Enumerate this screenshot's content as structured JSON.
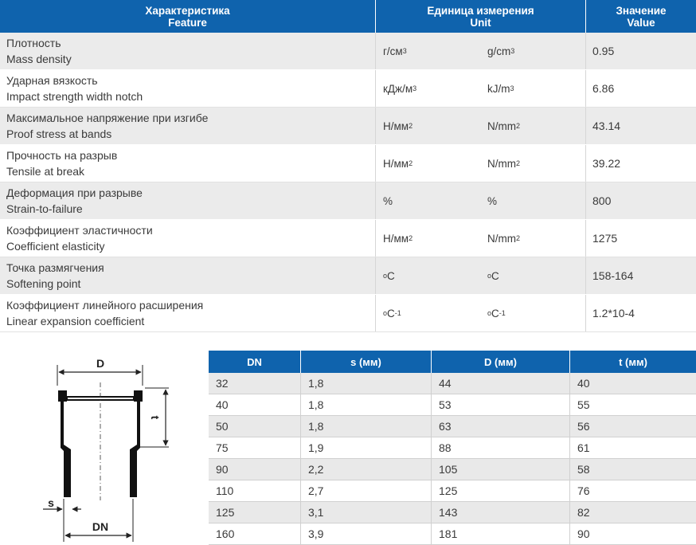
{
  "properties": {
    "headers": {
      "feature_ru": "Характеристика",
      "feature_en": "Feature",
      "unit_ru": "Единица измерения",
      "unit_en": "Unit",
      "value_ru": "Значение",
      "value_en": "Value"
    },
    "rows": [
      {
        "ru": "Плотность",
        "en": "Mass density",
        "unit_ru": "г/см",
        "unit_en": "g/cm",
        "sup": "3",
        "value": "0.95"
      },
      {
        "ru": "Ударная вязкость",
        "en": "Impact strength width notch",
        "unit_ru": "кДж/м",
        "unit_en": "kJ/m",
        "sup": "3",
        "value": "6.86"
      },
      {
        "ru": "Максимальное напряжение при изгибе",
        "en": "Proof stress at bands",
        "unit_ru": "Н/мм",
        "unit_en": "N/mm",
        "sup": "2",
        "value": "43.14"
      },
      {
        "ru": "Прочность на разрыв",
        "en": "Tensile at break",
        "unit_ru": "Н/мм",
        "unit_en": "N/mm",
        "sup": "2",
        "value": "39.22"
      },
      {
        "ru": "Деформация при разрыве",
        "en": "Strain-to-failure",
        "unit_ru": "%",
        "unit_en": "%",
        "sup": "",
        "value": "800"
      },
      {
        "ru": "Коэффициент эластичности",
        "en": "Coefficient elasticity",
        "unit_ru": "Н/мм",
        "unit_en": "N/mm",
        "sup": "2",
        "value": "1275"
      },
      {
        "ru": "Точка размягчения",
        "en": "Softening point",
        "unit_ru": "C",
        "unit_en": "C",
        "pre": "o",
        "sup": "",
        "value": "158-164"
      },
      {
        "ru": "Коэффициент линейного расширения",
        "en": "Linear expansion coefficient",
        "unit_ru": "C",
        "unit_en": "C",
        "pre": "o",
        "sup": "-1",
        "value": "1.2*10-4"
      }
    ]
  },
  "dimensions": {
    "headers": [
      "DN",
      "s (мм)",
      "D (мм)",
      "t (мм)"
    ],
    "rows": [
      [
        "32",
        "1,8",
        "44",
        "40"
      ],
      [
        "40",
        "1,8",
        "53",
        "55"
      ],
      [
        "50",
        "1,8",
        "63",
        "56"
      ],
      [
        "75",
        "1,9",
        "88",
        "61"
      ],
      [
        "90",
        "2,2",
        "105",
        "58"
      ],
      [
        "110",
        "2,7",
        "125",
        "76"
      ],
      [
        "125",
        "3,1",
        "143",
        "82"
      ],
      [
        "160",
        "3,9",
        "181",
        "90"
      ]
    ]
  },
  "diagram": {
    "label_D": "D",
    "label_t": "t",
    "label_s": "s",
    "label_DN": "DN"
  },
  "colors": {
    "header_blue": "#0f63ad",
    "row_gray": "#ebebeb"
  }
}
